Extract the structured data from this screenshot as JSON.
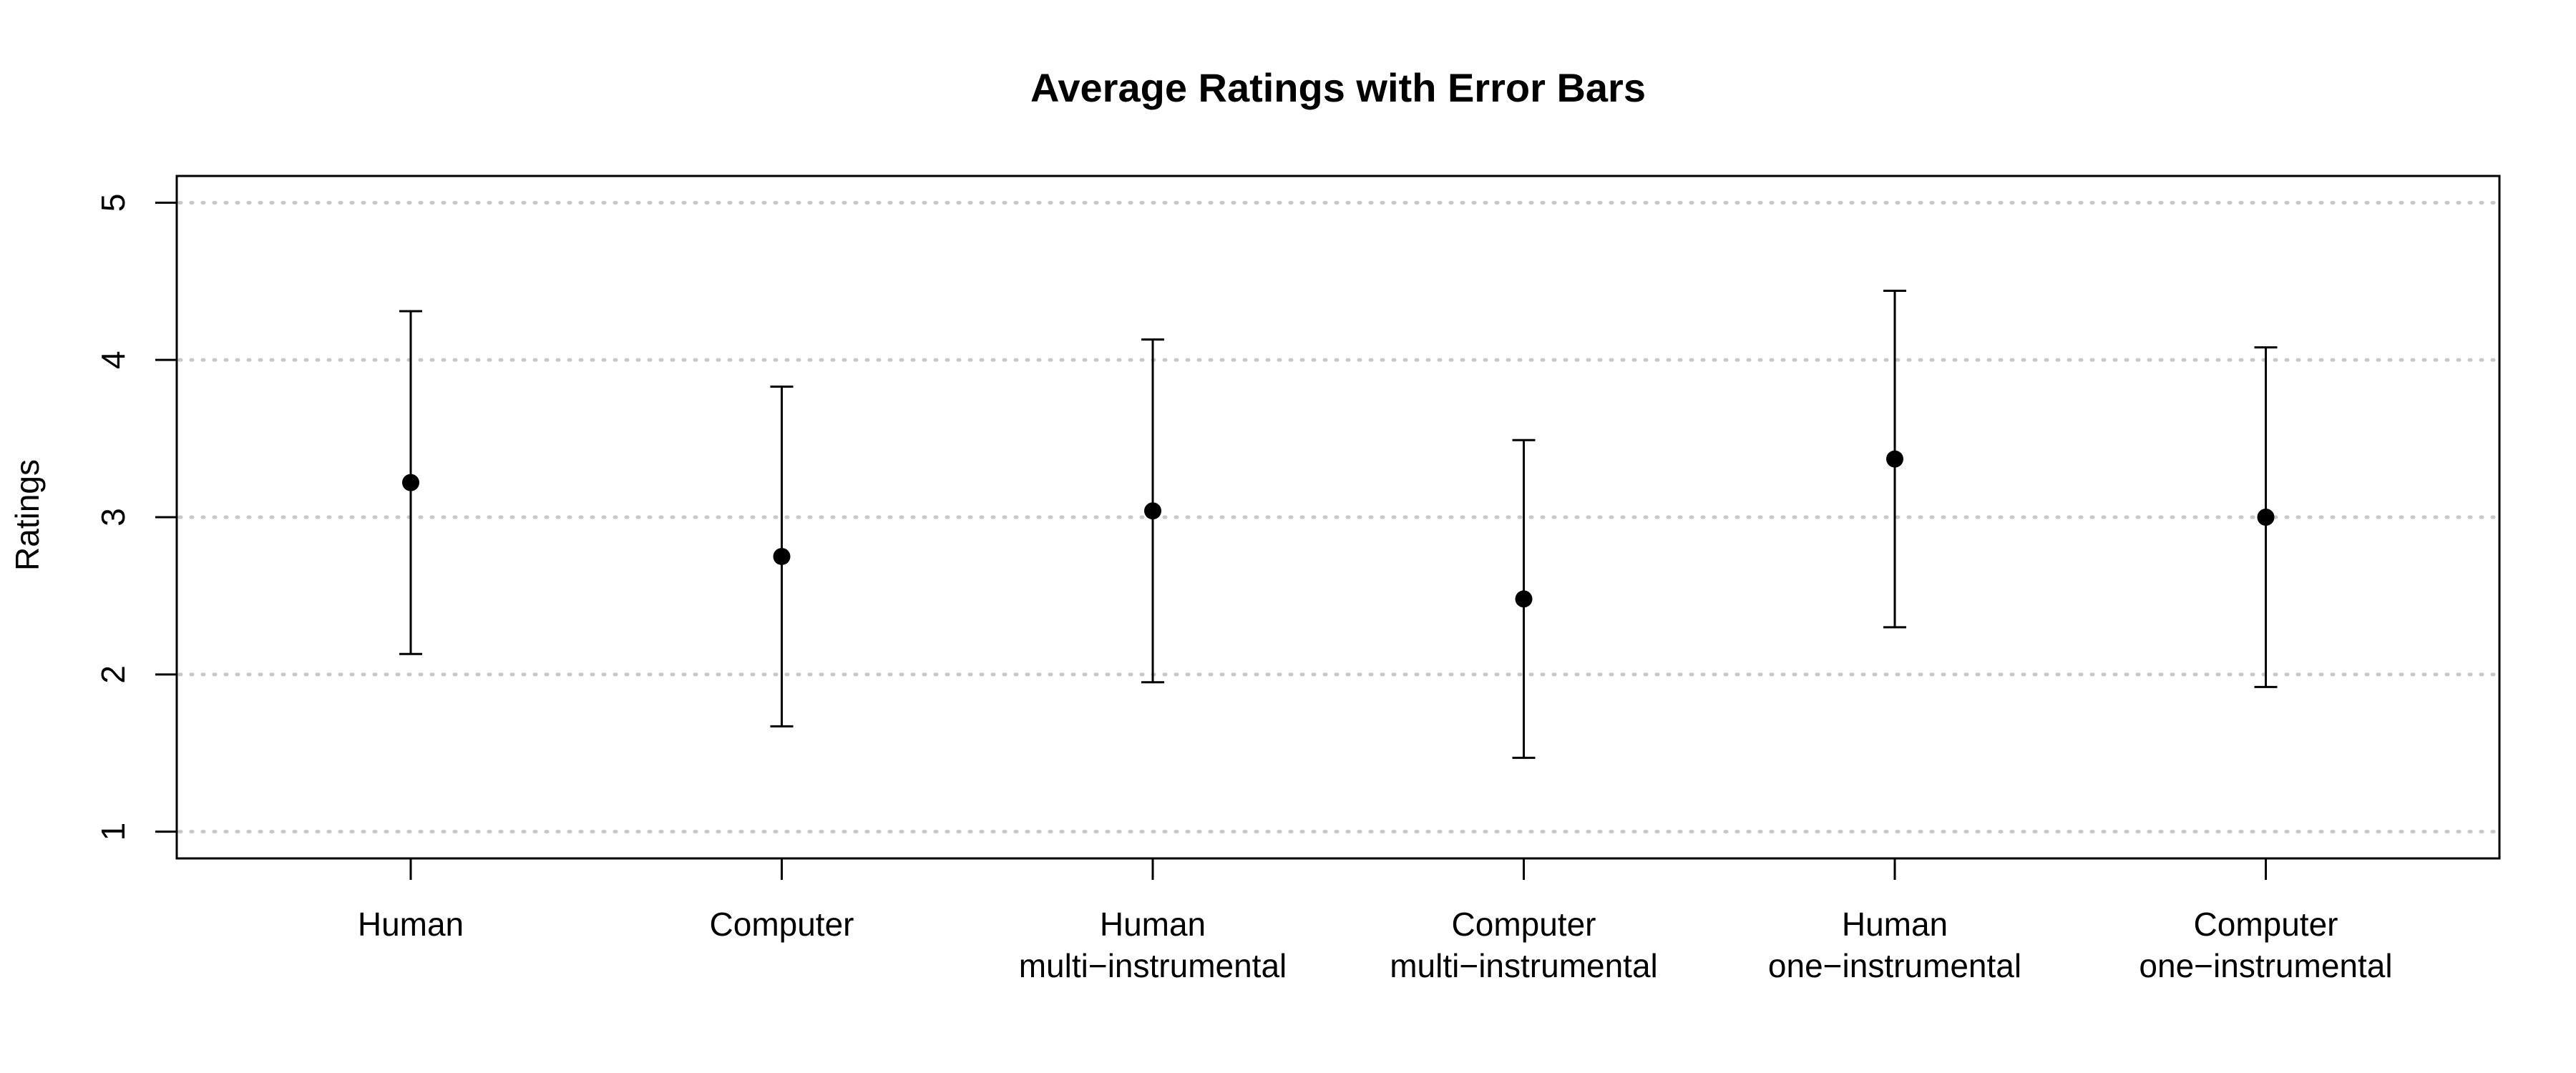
{
  "chart_data": {
    "type": "scatter",
    "title": "Average Ratings with Error Bars",
    "xlabel": "",
    "ylabel": "Ratings",
    "ylim": [
      0.83,
      5.17
    ],
    "yticks": [
      "1",
      "2",
      "3",
      "4",
      "5"
    ],
    "grid": "horizontal dotted",
    "categories": [
      [
        "Human"
      ],
      [
        "Computer"
      ],
      [
        "Human",
        "multi−instrumental"
      ],
      [
        "Computer",
        "multi−instrumental"
      ],
      [
        "Human",
        "one−instrumental"
      ],
      [
        "Computer",
        "one−instrumental"
      ]
    ],
    "means": [
      3.22,
      2.75,
      3.04,
      2.48,
      3.37,
      3.0
    ],
    "lower": [
      2.13,
      1.67,
      1.95,
      1.47,
      2.3,
      1.92
    ],
    "upper": [
      4.31,
      3.83,
      4.13,
      3.49,
      4.44,
      4.08
    ]
  }
}
